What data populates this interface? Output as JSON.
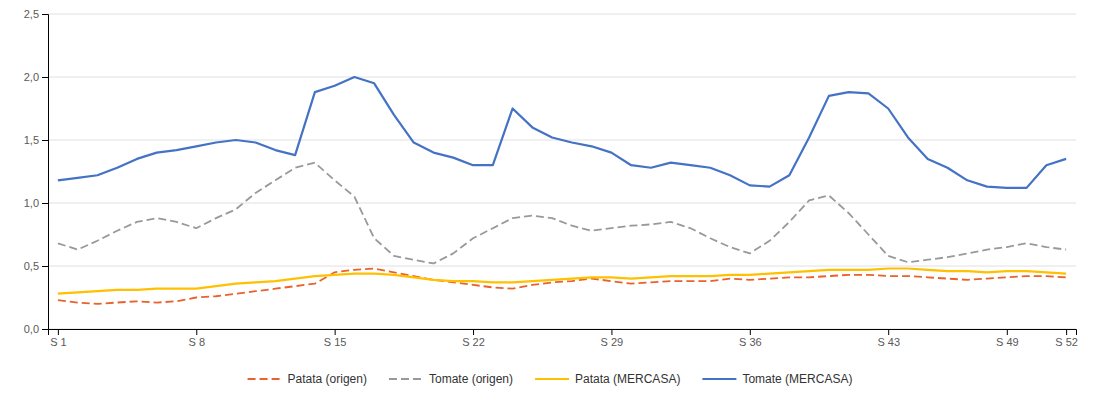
{
  "chart_data": {
    "type": "line",
    "x": [
      1,
      2,
      3,
      4,
      5,
      6,
      7,
      8,
      9,
      10,
      11,
      12,
      13,
      14,
      15,
      16,
      17,
      18,
      19,
      20,
      21,
      22,
      23,
      24,
      25,
      26,
      27,
      28,
      29,
      30,
      31,
      32,
      33,
      34,
      35,
      36,
      37,
      38,
      39,
      40,
      41,
      42,
      43,
      44,
      45,
      46,
      47,
      48,
      49,
      50,
      51,
      52
    ],
    "series": [
      {
        "name": "Patata (origen)",
        "color": "#E8622A",
        "line_style": "dashed",
        "values": [
          0.23,
          0.21,
          0.2,
          0.21,
          0.22,
          0.21,
          0.22,
          0.25,
          0.26,
          0.28,
          0.3,
          0.32,
          0.34,
          0.36,
          0.45,
          0.47,
          0.48,
          0.45,
          0.42,
          0.39,
          0.37,
          0.35,
          0.33,
          0.32,
          0.35,
          0.37,
          0.38,
          0.4,
          0.38,
          0.36,
          0.37,
          0.38,
          0.38,
          0.38,
          0.4,
          0.39,
          0.4,
          0.41,
          0.41,
          0.42,
          0.43,
          0.43,
          0.42,
          0.42,
          0.41,
          0.4,
          0.39,
          0.4,
          0.41,
          0.42,
          0.42,
          0.41
        ]
      },
      {
        "name": "Tomate (origen)",
        "color": "#999999",
        "line_style": "dashed",
        "values": [
          0.68,
          0.63,
          0.7,
          0.78,
          0.85,
          0.88,
          0.85,
          0.8,
          0.88,
          0.95,
          1.08,
          1.18,
          1.28,
          1.32,
          1.18,
          1.05,
          0.72,
          0.58,
          0.55,
          0.52,
          0.6,
          0.72,
          0.8,
          0.88,
          0.9,
          0.88,
          0.82,
          0.78,
          0.8,
          0.82,
          0.83,
          0.85,
          0.8,
          0.72,
          0.65,
          0.6,
          0.7,
          0.85,
          1.02,
          1.06,
          0.92,
          0.75,
          0.58,
          0.53,
          0.55,
          0.57,
          0.6,
          0.63,
          0.65,
          0.68,
          0.65,
          0.63
        ]
      },
      {
        "name": "Patata (MERCASA)",
        "color": "#FFC000",
        "line_style": "solid",
        "values": [
          0.28,
          0.29,
          0.3,
          0.31,
          0.31,
          0.32,
          0.32,
          0.32,
          0.34,
          0.36,
          0.37,
          0.38,
          0.4,
          0.42,
          0.43,
          0.44,
          0.44,
          0.43,
          0.41,
          0.39,
          0.38,
          0.38,
          0.37,
          0.37,
          0.38,
          0.39,
          0.4,
          0.41,
          0.41,
          0.4,
          0.41,
          0.42,
          0.42,
          0.42,
          0.43,
          0.43,
          0.44,
          0.45,
          0.46,
          0.47,
          0.47,
          0.47,
          0.48,
          0.48,
          0.47,
          0.46,
          0.46,
          0.45,
          0.46,
          0.46,
          0.45,
          0.44
        ]
      },
      {
        "name": "Tomate (MERCASA)",
        "color": "#4472C4",
        "line_style": "solid",
        "values": [
          1.18,
          1.2,
          1.22,
          1.28,
          1.35,
          1.4,
          1.42,
          1.45,
          1.48,
          1.5,
          1.48,
          1.42,
          1.38,
          1.88,
          1.93,
          2.0,
          1.95,
          1.7,
          1.48,
          1.4,
          1.36,
          1.3,
          1.3,
          1.75,
          1.6,
          1.52,
          1.48,
          1.45,
          1.4,
          1.3,
          1.28,
          1.32,
          1.3,
          1.28,
          1.22,
          1.14,
          1.13,
          1.22,
          1.52,
          1.85,
          1.88,
          1.87,
          1.75,
          1.52,
          1.35,
          1.28,
          1.18,
          1.13,
          1.12,
          1.12,
          1.3,
          1.35
        ]
      }
    ],
    "xlim": [
      0.5,
      52.5
    ],
    "xticks": [
      {
        "value": 1,
        "label": "S 1"
      },
      {
        "value": 8,
        "label": "S 8"
      },
      {
        "value": 15,
        "label": "S 15"
      },
      {
        "value": 22,
        "label": "S 22"
      },
      {
        "value": 29,
        "label": "S 29"
      },
      {
        "value": 36,
        "label": "S 36"
      },
      {
        "value": 43,
        "label": "S 43"
      },
      {
        "value": 49,
        "label": "S 49"
      },
      {
        "value": 52,
        "label": "S 52"
      }
    ],
    "ylim": [
      0.0,
      2.5
    ],
    "yticks": [
      {
        "value": 0.0,
        "label": "0,0"
      },
      {
        "value": 0.5,
        "label": "0,5"
      },
      {
        "value": 1.0,
        "label": "1,0"
      },
      {
        "value": 1.5,
        "label": "1,5"
      },
      {
        "value": 2.0,
        "label": "2,0"
      },
      {
        "value": 2.5,
        "label": "2,5"
      }
    ],
    "grid": true,
    "legend": "bottom"
  }
}
